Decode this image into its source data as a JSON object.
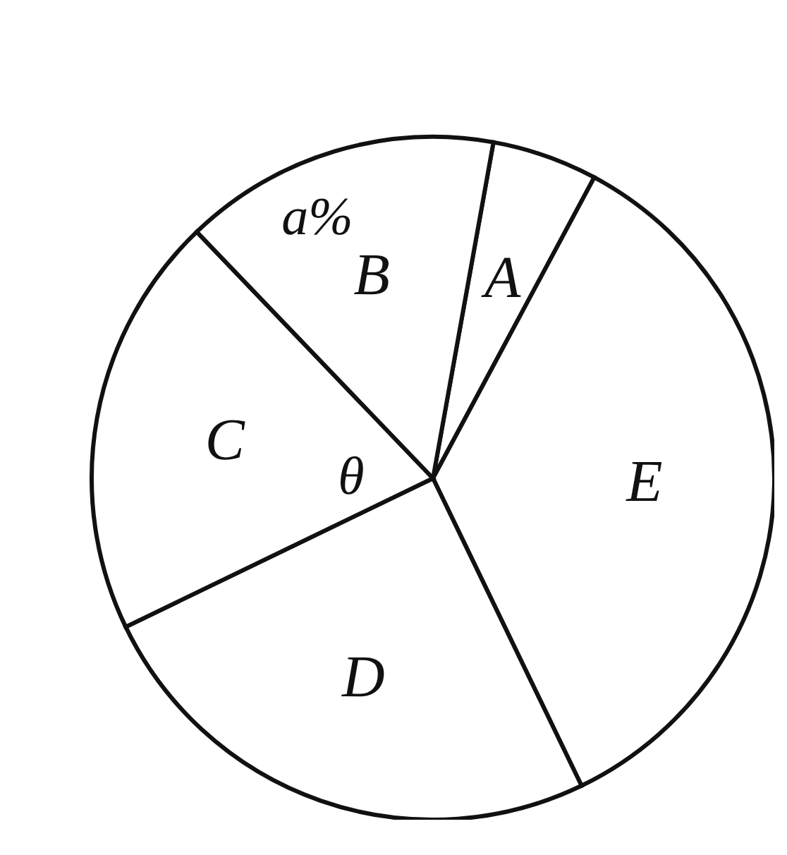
{
  "chart_data": {
    "type": "pie",
    "categories": [
      "A",
      "E",
      "D",
      "C",
      "B"
    ],
    "values": [
      5,
      35,
      25,
      20,
      15
    ],
    "colors": [
      "#ffffff",
      "#ffffff",
      "#ffffff",
      "#ffffff",
      "#ffffff"
    ],
    "annotations": [
      "a%",
      "θ"
    ]
  }
}
